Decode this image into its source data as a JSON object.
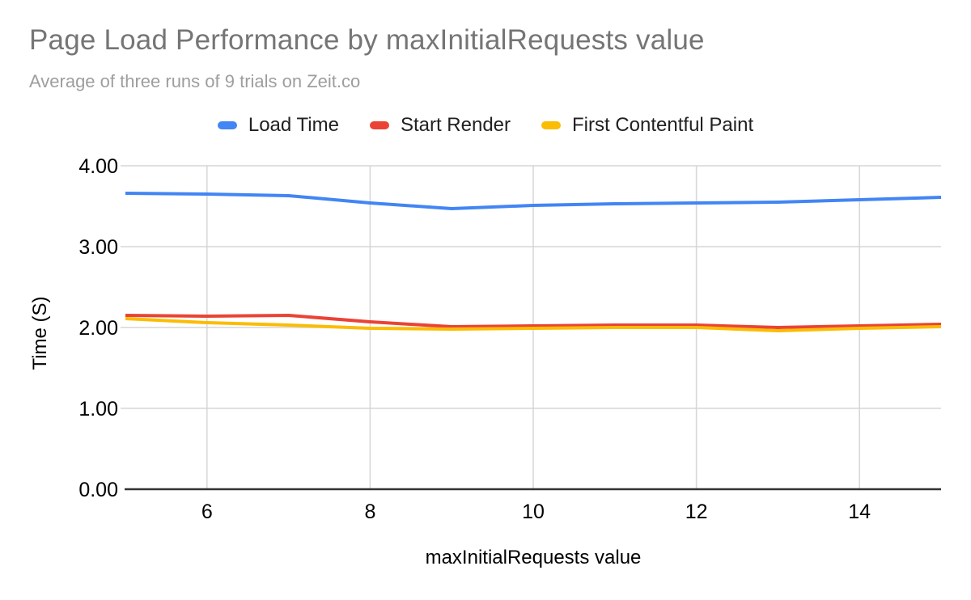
{
  "page": {
    "background": "#ffffff"
  },
  "chart_data": {
    "type": "line",
    "title": "Page Load Performance by maxInitialRequests value",
    "subtitle": "Average of three runs of 9 trials on Zeit.co",
    "xlabel": "maxInitialRequests value",
    "ylabel": "Time (S)",
    "x": [
      5,
      6,
      7,
      8,
      9,
      10,
      11,
      12,
      13,
      14,
      15
    ],
    "x_tick_labels": [
      "6",
      "8",
      "10",
      "12",
      "14"
    ],
    "x_tick_values": [
      6,
      8,
      10,
      12,
      14
    ],
    "y_tick_labels": [
      "0.00",
      "1.00",
      "2.00",
      "3.00",
      "4.00"
    ],
    "y_tick_values": [
      0,
      1,
      2,
      3,
      4
    ],
    "xlim": [
      5,
      15
    ],
    "ylim": [
      0,
      4
    ],
    "grid": true,
    "legend_position": "top",
    "series": [
      {
        "name": "Load Time",
        "color": "#4285f4",
        "values": [
          3.66,
          3.65,
          3.63,
          3.54,
          3.47,
          3.51,
          3.53,
          3.54,
          3.55,
          3.58,
          3.61
        ]
      },
      {
        "name": "Start Render",
        "color": "#ea4335",
        "values": [
          2.15,
          2.14,
          2.15,
          2.07,
          2.01,
          2.02,
          2.03,
          2.03,
          2.0,
          2.02,
          2.04
        ]
      },
      {
        "name": "First Contentful Paint",
        "color": "#fbbc04",
        "values": [
          2.11,
          2.06,
          2.03,
          1.99,
          1.98,
          1.99,
          2.0,
          2.0,
          1.96,
          1.99,
          2.01
        ]
      }
    ],
    "style": {
      "title_color": "#757575",
      "subtitle_color": "#9e9e9e",
      "tick_label_color": "#000000",
      "axis_title_color": "#000000",
      "legend_text_color": "#212121",
      "grid_color": "#d6d6d6",
      "baseline_color": "#333333"
    }
  }
}
